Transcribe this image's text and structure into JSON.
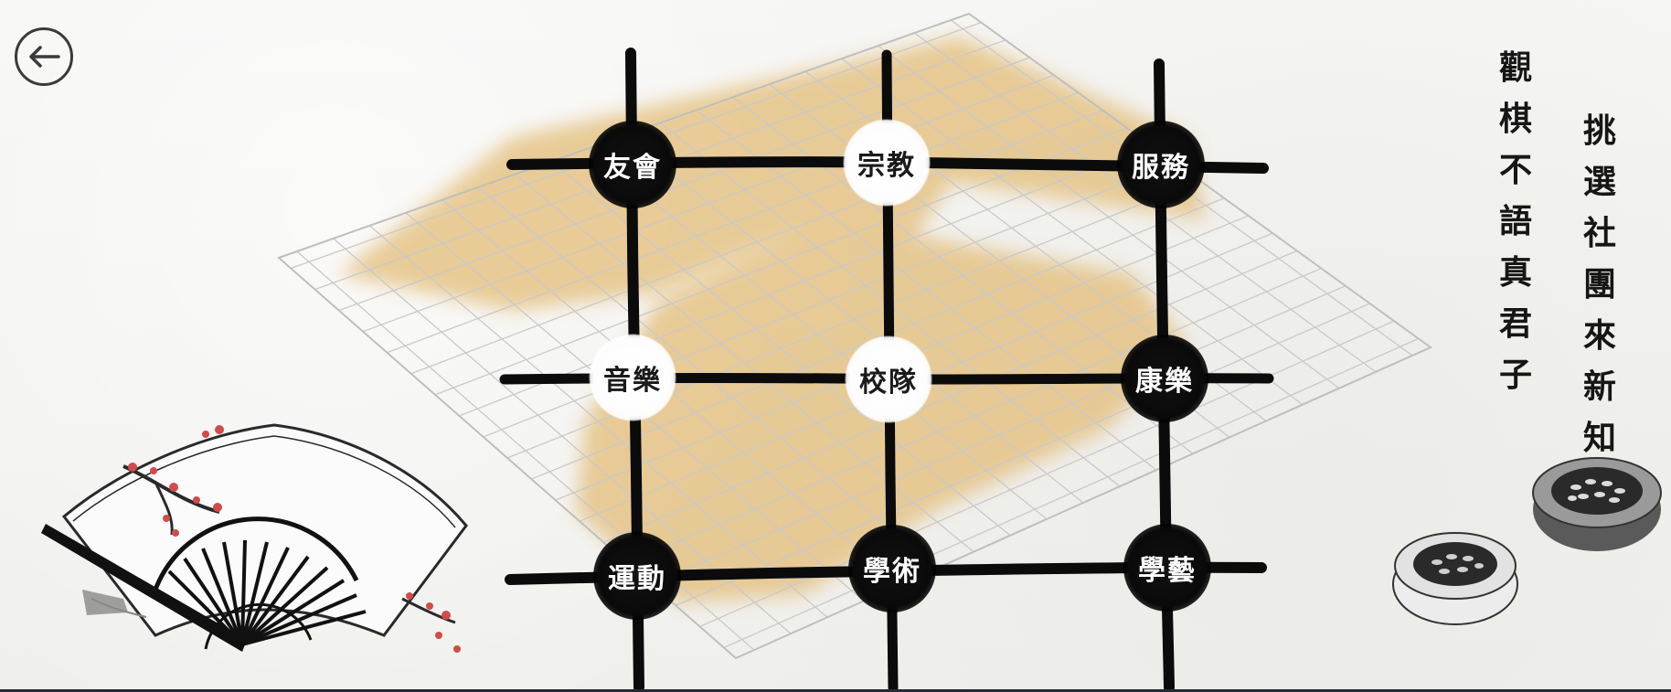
{
  "nav": {
    "back_icon": "back-arrow-icon"
  },
  "clubs": [
    {
      "label": "友會",
      "color": "black"
    },
    {
      "label": "宗教",
      "color": "white"
    },
    {
      "label": "服務",
      "color": "black"
    },
    {
      "label": "音樂",
      "color": "white"
    },
    {
      "label": "校隊",
      "color": "white"
    },
    {
      "label": "康樂",
      "color": "black"
    },
    {
      "label": "運動",
      "color": "black"
    },
    {
      "label": "學術",
      "color": "black"
    },
    {
      "label": "學藝",
      "color": "black"
    }
  ],
  "poem": {
    "line1": [
      "觀",
      "棋",
      "不",
      "語",
      "真",
      "君",
      "子"
    ],
    "line2": [
      "挑",
      "選",
      "社",
      "團",
      "來",
      "新",
      "知"
    ]
  },
  "decor": {
    "fan": "folding-fan-illustration",
    "bowl_white": "stone-bowl-icon",
    "bowl_black": "stone-bowl-icon"
  },
  "colors": {
    "ink": "#0b0b0b",
    "board_wash": "#e0b972",
    "paper": "#f3f3f1",
    "blossom": "#d24b4b"
  }
}
